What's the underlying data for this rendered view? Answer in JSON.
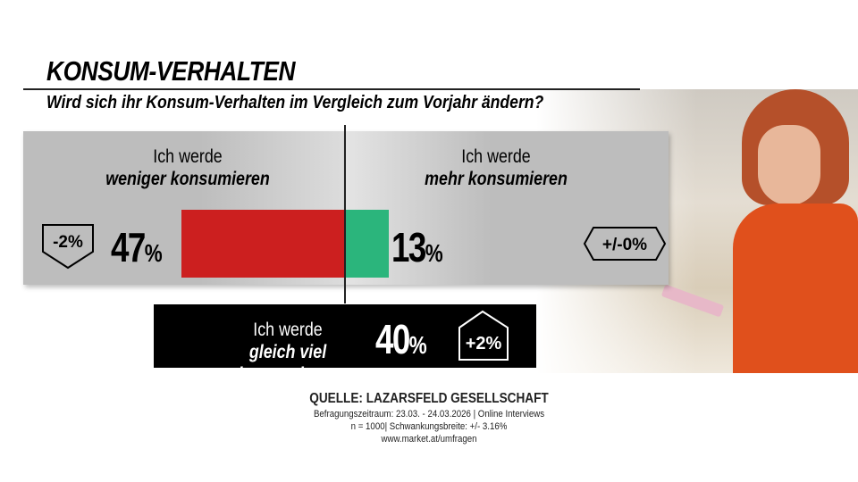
{
  "header": {
    "title": "KONSUM-VERHALTEN",
    "question": "Wird sich ihr Konsum-Verhalten im Vergleich zum Vorjahr ändern?"
  },
  "chart_data": {
    "type": "bar",
    "orientation": "diverging-horizontal",
    "categories": [
      "weniger konsumieren",
      "mehr konsumieren",
      "gleich viel konsumieren"
    ],
    "values": [
      47,
      13,
      40
    ],
    "unit": "%",
    "changes": [
      "-2%",
      "+/-0%",
      "+2%"
    ],
    "colors": {
      "weniger": "#cc1f1f",
      "mehr": "#2bb57c"
    }
  },
  "items": {
    "less": {
      "line1": "Ich werde",
      "line2": "weniger konsumieren",
      "value": "47",
      "unit": "%",
      "change": "-2%"
    },
    "more": {
      "line1": "Ich werde",
      "line2": "mehr konsumieren",
      "value": "13",
      "unit": "%",
      "change": "+/-0%"
    },
    "same": {
      "line1": "Ich werde",
      "line2": "gleich viel konsumieren",
      "value": "40",
      "unit": "%",
      "change": "+2%"
    }
  },
  "source": {
    "title": "QUELLE:  LAZARSFELD GESELLSCHAFT",
    "line1": "Befragungszeitraum: 23.03. - 24.03.2026 | Online Interviews",
    "line2": "n = 1000|  Schwankungsbreite: +/- 3.16%",
    "line3": "www.market.at/umfragen"
  }
}
